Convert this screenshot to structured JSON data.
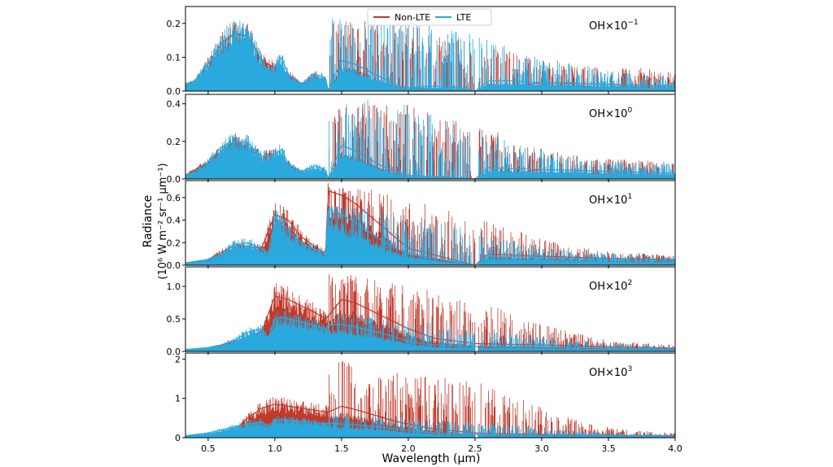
{
  "chart_data": {
    "type": "line",
    "xlabel": "Wavelength (μm)",
    "ylabel_line1": "Radiance",
    "ylabel_line2": "(10⁶ W m⁻² sr⁻¹ μm⁻¹)",
    "xlim": [
      0.33,
      4.0
    ],
    "xticks": [
      0.5,
      1.0,
      1.5,
      2.0,
      2.5,
      3.0,
      3.5,
      4.0
    ],
    "xtick_labels": [
      "0.5",
      "1.0",
      "1.5",
      "2.0",
      "2.5",
      "3.0",
      "3.5",
      "4.0"
    ],
    "legend": {
      "placement": "top-center",
      "entries": [
        {
          "name": "Non-LTE",
          "color": "#c0392b"
        },
        {
          "name": "LTE",
          "color": "#2aa9de"
        }
      ]
    },
    "panels": [
      {
        "label_base": "OH×10",
        "label_exp": "−1",
        "ylim": [
          0,
          0.25
        ],
        "yticks": [
          0.0,
          0.1,
          0.2
        ],
        "ytick_labels": [
          "0.0",
          "0.1",
          "0.2"
        ],
        "series": [
          {
            "name": "LTE",
            "x": [
              0.33,
              0.4,
              0.5,
              0.6,
              0.65,
              0.7,
              0.75,
              0.8,
              0.85,
              0.9,
              0.95,
              1.0,
              1.05,
              1.1,
              1.2,
              1.3,
              1.38,
              1.4,
              1.5,
              1.6,
              1.7,
              1.8,
              1.9,
              2.0,
              2.2,
              2.4,
              2.5,
              2.6,
              2.8,
              3.0,
              3.2,
              3.4,
              3.6,
              3.8,
              4.0
            ],
            "y": [
              0.02,
              0.03,
              0.08,
              0.14,
              0.16,
              0.17,
              0.17,
              0.16,
              0.13,
              0.09,
              0.06,
              0.07,
              0.1,
              0.05,
              0.02,
              0.05,
              0.04,
              0.0,
              0.09,
              0.08,
              0.06,
              0.04,
              0.02,
              0.01,
              0.015,
              0.01,
              0.0,
              0.03,
              0.03,
              0.025,
              0.025,
              0.02,
              0.02,
              0.015,
              0.015
            ],
            "spikes": [
              0.21,
              0.23,
              0.22,
              0.19,
              0.16,
              0.12,
              0.09,
              0.07,
              0.05,
              0.04
            ]
          },
          {
            "name": "Non-LTE",
            "x": [
              0.33,
              0.4,
              0.5,
              0.6,
              0.7,
              0.8,
              0.9,
              1.0,
              1.1,
              1.2,
              1.3,
              1.4,
              1.5,
              1.6,
              1.7,
              1.8,
              1.9,
              2.0,
              2.5,
              3.0,
              3.5,
              4.0
            ],
            "y": [
              0.02,
              0.03,
              0.08,
              0.14,
              0.17,
              0.16,
              0.09,
              0.07,
              0.05,
              0.02,
              0.05,
              0.0,
              0.09,
              0.08,
              0.06,
              0.04,
              0.02,
              0.01,
              0.0,
              0.025,
              0.02,
              0.015
            ],
            "spikes": [
              0.2,
              0.21,
              0.2,
              0.17,
              0.14,
              0.11,
              0.08,
              0.07,
              0.07,
              0.06
            ]
          }
        ]
      },
      {
        "label_base": "OH×10",
        "label_exp": "0",
        "ylim": [
          0,
          0.45
        ],
        "yticks": [
          0.0,
          0.2,
          0.4
        ],
        "ytick_labels": [
          "0.0",
          "0.2",
          "0.4"
        ],
        "series": [
          {
            "name": "LTE",
            "x": [
              0.33,
              0.4,
              0.5,
              0.6,
              0.7,
              0.8,
              0.9,
              1.0,
              1.05,
              1.1,
              1.2,
              1.3,
              1.38,
              1.4,
              1.5,
              1.6,
              1.7,
              1.8,
              1.9,
              2.0,
              2.5,
              2.6,
              3.0,
              3.5,
              4.0
            ],
            "y": [
              0.02,
              0.04,
              0.09,
              0.17,
              0.2,
              0.19,
              0.12,
              0.13,
              0.16,
              0.08,
              0.04,
              0.07,
              0.05,
              0.0,
              0.18,
              0.15,
              0.11,
              0.07,
              0.04,
              0.02,
              0.0,
              0.06,
              0.05,
              0.04,
              0.03
            ],
            "spikes": [
              0.42,
              0.43,
              0.4,
              0.33,
              0.26,
              0.19,
              0.13,
              0.1,
              0.09,
              0.08
            ]
          },
          {
            "name": "Non-LTE",
            "x": [
              0.33,
              0.5,
              0.7,
              0.9,
              1.0,
              1.1,
              1.2,
              1.4,
              1.5,
              1.6,
              1.7,
              1.8,
              1.9,
              2.0,
              2.5,
              3.0,
              3.5,
              4.0
            ],
            "y": [
              0.02,
              0.09,
              0.2,
              0.12,
              0.13,
              0.08,
              0.04,
              0.0,
              0.18,
              0.15,
              0.11,
              0.07,
              0.04,
              0.02,
              0.0,
              0.05,
              0.04,
              0.03
            ],
            "spikes": [
              0.41,
              0.42,
              0.4,
              0.34,
              0.28,
              0.2,
              0.14,
              0.11,
              0.1,
              0.09
            ]
          }
        ]
      },
      {
        "label_base": "OH×10",
        "label_exp": "1",
        "ylim": [
          0,
          0.75
        ],
        "yticks": [
          0.0,
          0.2,
          0.4,
          0.6
        ],
        "ytick_labels": [
          "0.0",
          "0.2",
          "0.4",
          "0.6"
        ],
        "series": [
          {
            "name": "LTE",
            "x": [
              0.33,
              0.5,
              0.6,
              0.7,
              0.8,
              0.9,
              0.95,
              1.0,
              1.05,
              1.1,
              1.2,
              1.3,
              1.38,
              1.4,
              1.5,
              1.6,
              1.7,
              1.8,
              1.9,
              2.0,
              2.5,
              2.6,
              3.0,
              3.5,
              4.0
            ],
            "y": [
              0.02,
              0.05,
              0.1,
              0.18,
              0.2,
              0.15,
              0.1,
              0.42,
              0.38,
              0.3,
              0.2,
              0.14,
              0.1,
              0.5,
              0.45,
              0.38,
              0.3,
              0.22,
              0.15,
              0.1,
              0.0,
              0.08,
              0.07,
              0.05,
              0.04
            ],
            "spikes": [
              0.55,
              0.52,
              0.45,
              0.38,
              0.3,
              0.22,
              0.15,
              0.11,
              0.1,
              0.08
            ]
          },
          {
            "name": "Non-LTE",
            "x": [
              0.33,
              0.5,
              0.7,
              0.9,
              1.0,
              1.1,
              1.2,
              1.38,
              1.4,
              1.5,
              1.6,
              1.7,
              1.8,
              1.9,
              2.0,
              2.5,
              2.6,
              3.0,
              3.5,
              4.0
            ],
            "y": [
              0.02,
              0.05,
              0.18,
              0.15,
              0.45,
              0.4,
              0.25,
              0.1,
              0.66,
              0.62,
              0.55,
              0.45,
              0.35,
              0.25,
              0.15,
              0.0,
              0.1,
              0.08,
              0.06,
              0.05
            ],
            "spikes": [
              0.7,
              0.68,
              0.6,
              0.5,
              0.4,
              0.3,
              0.2,
              0.13,
              0.11,
              0.09
            ]
          }
        ]
      },
      {
        "label_base": "OH×10",
        "label_exp": "2",
        "ylim": [
          0,
          1.3
        ],
        "yticks": [
          0.0,
          0.5,
          1.0
        ],
        "ytick_labels": [
          "0.0",
          "0.5",
          "1.0"
        ],
        "series": [
          {
            "name": "LTE",
            "x": [
              0.33,
              0.5,
              0.6,
              0.7,
              0.8,
              0.9,
              0.95,
              1.0,
              1.05,
              1.1,
              1.2,
              1.3,
              1.38,
              1.4,
              1.5,
              1.6,
              1.7,
              1.8,
              1.9,
              2.0,
              2.2,
              2.5,
              3.0,
              3.5,
              4.0
            ],
            "y": [
              0.03,
              0.06,
              0.1,
              0.18,
              0.3,
              0.35,
              0.2,
              0.5,
              0.52,
              0.5,
              0.45,
              0.4,
              0.35,
              0.4,
              0.42,
              0.38,
              0.33,
              0.28,
              0.22,
              0.15,
              0.1,
              0.08,
              0.07,
              0.05,
              0.04
            ],
            "spikes": [
              0.6,
              0.55,
              0.5,
              0.42,
              0.35,
              0.28,
              0.2,
              0.14,
              0.1,
              0.08
            ]
          },
          {
            "name": "Non-LTE",
            "x": [
              0.33,
              0.5,
              0.7,
              0.9,
              1.0,
              1.1,
              1.2,
              1.3,
              1.38,
              1.4,
              1.5,
              1.6,
              1.7,
              1.8,
              1.9,
              2.0,
              2.2,
              2.5,
              3.0,
              3.5,
              4.0
            ],
            "y": [
              0.02,
              0.04,
              0.15,
              0.3,
              0.85,
              0.8,
              0.7,
              0.6,
              0.5,
              0.55,
              0.8,
              0.75,
              0.65,
              0.55,
              0.45,
              0.35,
              0.2,
              0.12,
              0.1,
              0.07,
              0.05
            ],
            "spikes": [
              1.2,
              1.15,
              1.05,
              0.9,
              0.75,
              0.55,
              0.35,
              0.2,
              0.14,
              0.1
            ]
          }
        ]
      },
      {
        "label_base": "OH×10",
        "label_exp": "3",
        "ylim": [
          0,
          2.15
        ],
        "yticks": [
          0,
          1,
          2
        ],
        "ytick_labels": [
          "0",
          "1",
          "2"
        ],
        "series": [
          {
            "name": "LTE",
            "x": [
              0.33,
              0.5,
              0.6,
              0.7,
              0.8,
              0.9,
              0.95,
              1.0,
              1.1,
              1.2,
              1.3,
              1.4,
              1.5,
              1.6,
              1.7,
              1.8,
              1.9,
              2.0,
              2.2,
              2.5,
              3.0,
              3.5,
              4.0
            ],
            "y": [
              0.05,
              0.12,
              0.2,
              0.28,
              0.35,
              0.4,
              0.3,
              0.45,
              0.45,
              0.42,
              0.38,
              0.36,
              0.35,
              0.33,
              0.3,
              0.27,
              0.22,
              0.18,
              0.12,
              0.08,
              0.06,
              0.05,
              0.04
            ],
            "spikes": [
              0.6,
              0.55,
              0.5,
              0.45,
              0.38,
              0.3,
              0.22,
              0.15,
              0.1,
              0.08
            ]
          },
          {
            "name": "Non-LTE",
            "x": [
              0.33,
              0.5,
              0.7,
              0.8,
              0.9,
              1.0,
              1.1,
              1.2,
              1.3,
              1.4,
              1.5,
              1.6,
              1.7,
              1.8,
              1.9,
              2.0,
              2.2,
              2.5,
              3.0,
              3.5,
              4.0
            ],
            "y": [
              0.01,
              0.03,
              0.2,
              0.5,
              0.75,
              0.85,
              0.8,
              0.75,
              0.7,
              0.65,
              0.8,
              0.72,
              0.62,
              0.52,
              0.42,
              0.35,
              0.22,
              0.12,
              0.08,
              0.06,
              0.05
            ],
            "spikes": [
              2.05,
              1.8,
              1.6,
              1.55,
              1.4,
              1.0,
              0.6,
              0.3,
              0.18,
              0.12
            ]
          }
        ]
      }
    ]
  }
}
